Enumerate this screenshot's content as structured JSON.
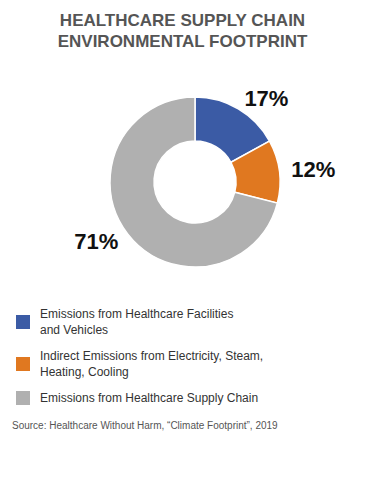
{
  "chart_data": {
    "type": "pie",
    "title": "HEALTHCARE SUPPLY CHAIN\nENVIRONMENTAL FOOTPRINT",
    "categories": [
      "Emissions from Healthcare Facilities\nand Vehicles",
      "Indirect Emissions from Electricity, Steam,\nHeating, Cooling",
      "Emissions from Healthcare Supply Chain"
    ],
    "values": [
      17,
      12,
      71
    ],
    "colors": [
      "#3b5ba5",
      "#e07820",
      "#b0b0b0"
    ],
    "data_labels": true,
    "value_labels": [
      "17%",
      "12%",
      "71%"
    ],
    "legend": "bottom",
    "annotations": [
      "Source: Healthcare Without Harm, “Climate Footprint”, 2019"
    ]
  }
}
